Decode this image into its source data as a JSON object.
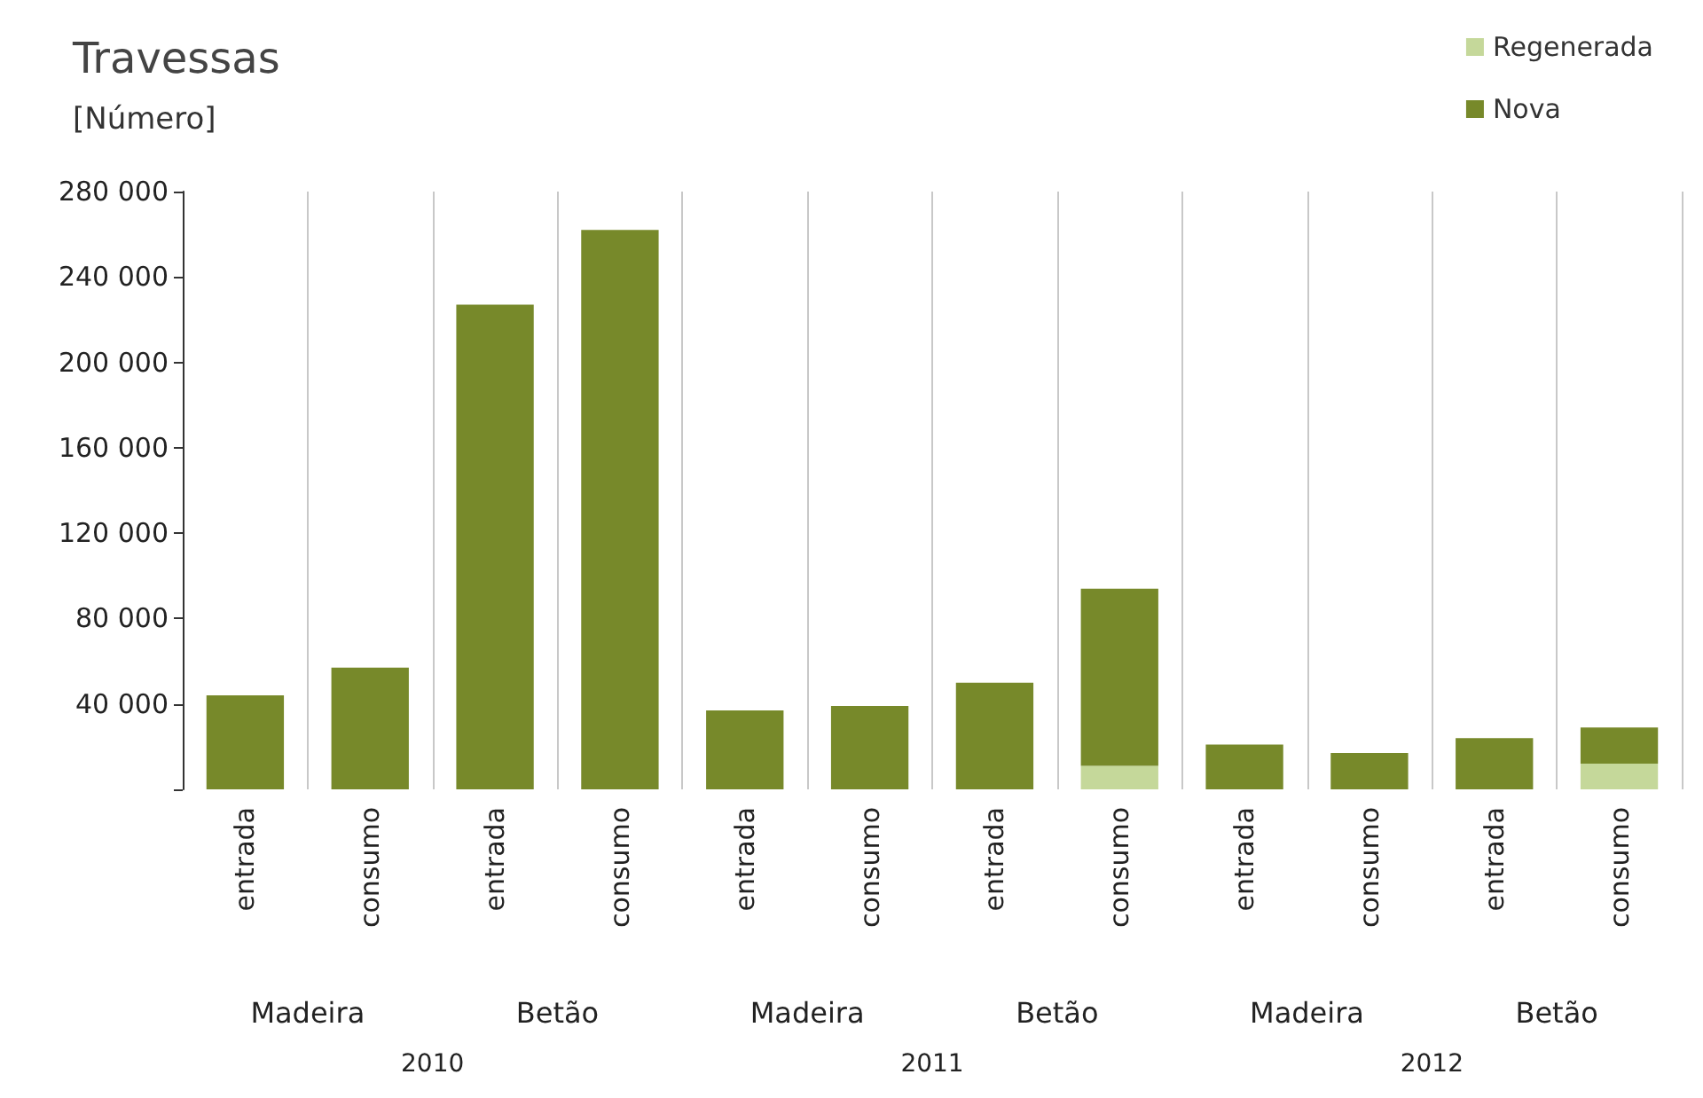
{
  "chart_data": {
    "type": "bar",
    "title": "Travessas",
    "subtitle": "[Número]",
    "categories": [
      "entrada",
      "consumo",
      "entrada",
      "consumo",
      "entrada",
      "consumo",
      "entrada",
      "consumo",
      "entrada",
      "consumo",
      "entrada",
      "consumo"
    ],
    "annotations": [
      "Madeira",
      "Betão",
      "Madeira",
      "Betão",
      "Madeira",
      "Betão",
      "2010",
      "2011",
      "2012"
    ],
    "stacked": true,
    "series": [
      {
        "name": "Regenerada",
        "color": "#c5d89a",
        "values": [
          0,
          0,
          0,
          0,
          0,
          0,
          0,
          11000,
          0,
          0,
          0,
          12000
        ]
      },
      {
        "name": "Nova",
        "color": "#77892a",
        "values": [
          44000,
          57000,
          227000,
          262000,
          37000,
          39000,
          50000,
          83000,
          21000,
          17000,
          24000,
          17000
        ]
      }
    ],
    "ylim": [
      0,
      280000
    ],
    "yticks": [
      {
        "value": 0,
        "label": null
      },
      {
        "value": 40000,
        "label": "40 000"
      },
      {
        "value": 80000,
        "label": "80 000"
      },
      {
        "value": 120000,
        "label": "120 000"
      },
      {
        "value": 160000,
        "label": "160 000"
      },
      {
        "value": 200000,
        "label": "200 000"
      },
      {
        "value": 240000,
        "label": "240 000"
      },
      {
        "value": 280000,
        "label": "280 000"
      }
    ],
    "grid": "x",
    "legend": "top right"
  }
}
